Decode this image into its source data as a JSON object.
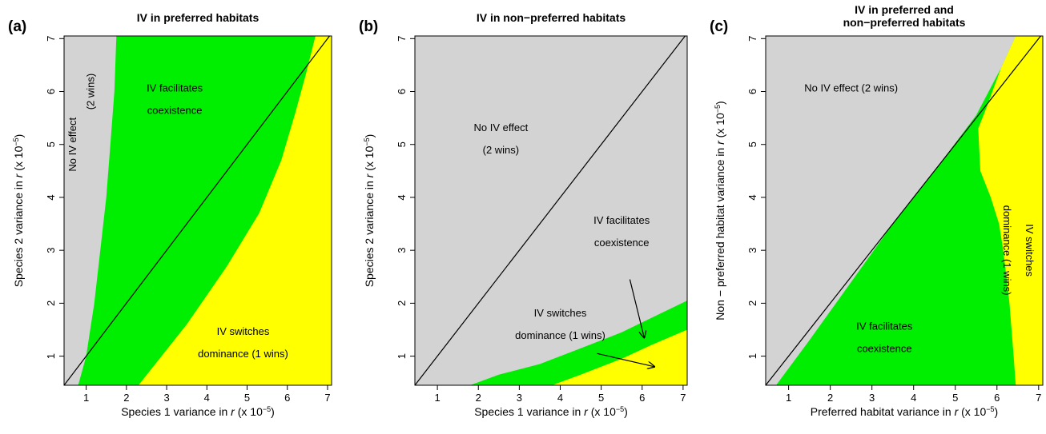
{
  "chart_data": [
    {
      "type": "heatmap",
      "panel_letter": "(a)",
      "title": "IV in preferred habitats",
      "xlabel": {
        "pre": "Species 1 variance in ",
        "var": "r",
        "mid": " (x 10",
        "sup": "−5",
        "post": ")"
      },
      "ylabel": {
        "pre": "Species 2 variance in ",
        "var": "r",
        "mid": " (x 10",
        "sup": "−5",
        "post": ")"
      },
      "xlim": [
        0.45,
        7.1
      ],
      "ylim": [
        0.45,
        7.05
      ],
      "xticks": [
        1,
        2,
        3,
        4,
        5,
        6,
        7
      ],
      "yticks": [
        1,
        2,
        3,
        4,
        5,
        6,
        7
      ],
      "colors": {
        "background": "#d3d3d3",
        "coexistence": "#00ee00",
        "switch": "#ffff00"
      },
      "lower_boundary": [
        [
          0.45,
          7.05
        ],
        [
          1.75,
          7.05
        ],
        [
          1.7,
          6.0
        ],
        [
          1.6,
          5.0
        ],
        [
          1.5,
          4.0
        ],
        [
          1.35,
          3.0
        ],
        [
          1.2,
          2.0
        ],
        [
          1.0,
          1.0
        ],
        [
          0.8,
          0.45
        ]
      ],
      "upper_boundary": [
        [
          2.3,
          0.45
        ],
        [
          3.5,
          1.6
        ],
        [
          4.5,
          2.7
        ],
        [
          5.3,
          3.7
        ],
        [
          5.85,
          4.7
        ],
        [
          6.2,
          5.6
        ],
        [
          6.45,
          6.3
        ],
        [
          6.65,
          6.9
        ],
        [
          6.7,
          7.05
        ]
      ],
      "diagonal": true,
      "annotations": [
        {
          "lines": [
            "IV facilitates",
            "coexistence"
          ],
          "x": 3.2,
          "y": 6.0
        },
        {
          "lines": [
            "No IV effect"
          ],
          "x": 0.75,
          "y": 5.0,
          "rotate": -90
        },
        {
          "lines": [
            "(2 wins)"
          ],
          "x": 1.2,
          "y": 6.0,
          "rotate": -90
        },
        {
          "lines": [
            "IV switches",
            "dominance (1 wins)"
          ],
          "x": 4.9,
          "y": 1.4
        }
      ]
    },
    {
      "type": "heatmap",
      "panel_letter": "(b)",
      "title": "IV in non−preferred habitats",
      "xlabel": {
        "pre": "Species 1 variance in ",
        "var": "r",
        "mid": " (x 10",
        "sup": "−5",
        "post": ")"
      },
      "ylabel": {
        "pre": "Species 2 variance in ",
        "var": "r",
        "mid": " (x 10",
        "sup": "−5",
        "post": ")"
      },
      "xlim": [
        0.45,
        7.1
      ],
      "ylim": [
        0.45,
        7.05
      ],
      "xticks": [
        1,
        2,
        3,
        4,
        5,
        6,
        7
      ],
      "yticks": [
        1,
        2,
        3,
        4,
        5,
        6,
        7
      ],
      "colors": {
        "background": "#d3d3d3",
        "coexistence": "#00ee00",
        "switch": "#ffff00"
      },
      "lower_boundary": [
        [
          1.8,
          0.45
        ],
        [
          2.5,
          0.65
        ],
        [
          3.5,
          0.85
        ],
        [
          4.5,
          1.15
        ],
        [
          5.5,
          1.45
        ],
        [
          6.3,
          1.75
        ],
        [
          7.1,
          2.05
        ],
        [
          7.1,
          2.05
        ]
      ],
      "upper_boundary": [
        [
          3.8,
          0.45
        ],
        [
          4.5,
          0.65
        ],
        [
          5.5,
          0.95
        ],
        [
          6.2,
          1.2
        ],
        [
          7.1,
          1.5
        ]
      ],
      "diagonal": true,
      "annotations": [
        {
          "lines": [
            "No IV effect",
            "(2 wins)"
          ],
          "x": 2.55,
          "y": 5.25
        },
        {
          "lines": [
            "IV facilitates",
            "coexistence"
          ],
          "x": 5.5,
          "y": 3.5
        },
        {
          "lines": [
            "IV switches",
            "dominance (1 wins)"
          ],
          "x": 4.0,
          "y": 1.75
        }
      ],
      "arrows": [
        {
          "from": [
            5.7,
            2.45
          ],
          "to": [
            6.05,
            1.35
          ]
        },
        {
          "from": [
            4.9,
            1.05
          ],
          "to": [
            6.3,
            0.8
          ]
        }
      ]
    },
    {
      "type": "heatmap",
      "panel_letter": "(c)",
      "title": "IV in preferred and\nnon−preferred habitats",
      "xlabel": {
        "pre": "Preferred habitat variance in ",
        "var": "r",
        "mid": " (x 10",
        "sup": "−5",
        "post": ")"
      },
      "ylabel": {
        "pre": "Non − preferred habitat variance in ",
        "var": "r",
        "mid": " (x 10",
        "sup": "−5",
        "post": ")"
      },
      "xlim": [
        0.45,
        7.1
      ],
      "ylim": [
        0.45,
        7.05
      ],
      "xticks": [
        1,
        2,
        3,
        4,
        5,
        6,
        7
      ],
      "yticks": [
        1,
        2,
        3,
        4,
        5,
        6,
        7
      ],
      "colors": {
        "background": "#d3d3d3",
        "coexistence": "#00ee00",
        "switch": "#ffff00"
      },
      "lower_boundary": [
        [
          0.7,
          0.45
        ],
        [
          1.5,
          1.3
        ],
        [
          2.5,
          2.4
        ],
        [
          3.5,
          3.5
        ],
        [
          4.5,
          4.5
        ],
        [
          5.5,
          5.55
        ],
        [
          6.1,
          6.45
        ],
        [
          6.45,
          7.05
        ]
      ],
      "upper_boundary": [
        [
          6.45,
          0.45
        ],
        [
          6.4,
          1.0
        ],
        [
          6.3,
          2.0
        ],
        [
          6.15,
          3.0
        ],
        [
          6.05,
          3.5
        ],
        [
          5.85,
          4.0
        ],
        [
          5.6,
          4.5
        ],
        [
          5.55,
          5.3
        ],
        [
          5.75,
          5.7
        ],
        [
          6.1,
          6.45
        ],
        [
          6.45,
          7.05
        ]
      ],
      "diagonal": true,
      "annotations": [
        {
          "lines": [
            "No IV effect (2 wins)"
          ],
          "x": 2.5,
          "y": 6.0
        },
        {
          "lines": [
            "IV facilitates",
            "coexistence"
          ],
          "x": 3.3,
          "y": 1.5
        },
        {
          "lines": [
            "IV switches",
            "dominance (1 wins)"
          ],
          "x": 6.7,
          "y": 3.0,
          "rotate": 90
        }
      ]
    }
  ]
}
